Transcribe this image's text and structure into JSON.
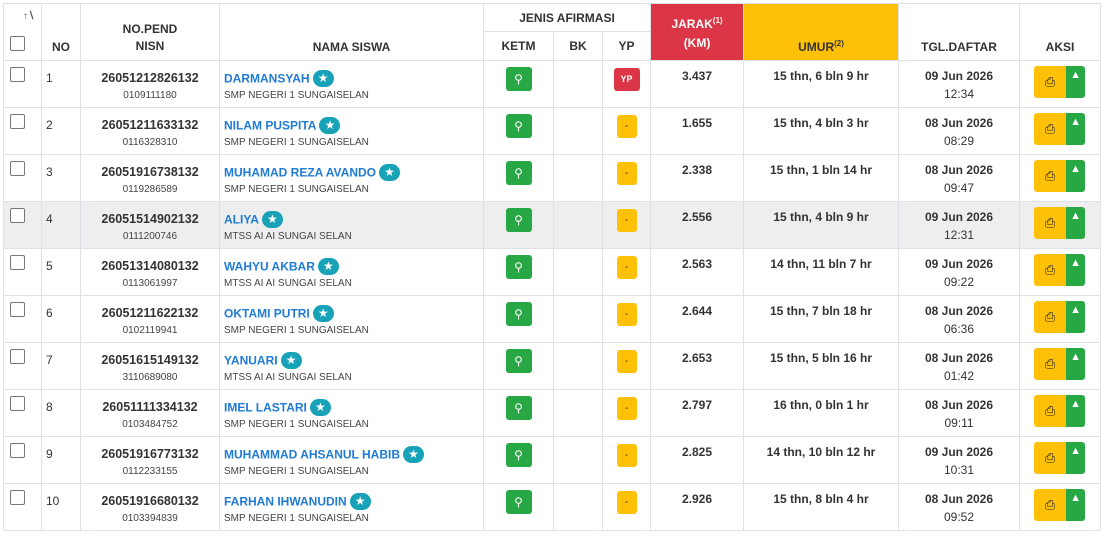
{
  "headers": {
    "no": "NO",
    "nopend": "NO.PEND",
    "nisn": "NISN",
    "nama": "NAMA SISWA",
    "jenis_afirmasi": "JENIS AFIRMASI",
    "ketm": "KETM",
    "bk": "BK",
    "yp": "YP",
    "jarak": "JARAK",
    "jarak_sup": "(1)",
    "jarak_unit": "(KM)",
    "umur": "UMUR",
    "umur_sup": "(2)",
    "tgl": "TGL.DAFTAR",
    "aksi": "AKSI"
  },
  "icons": {
    "sort": "sort-icon",
    "search": "search-icon",
    "star": "star-icon",
    "print": "print-icon",
    "thumbs_up": "thumbs-up-icon"
  },
  "colors": {
    "jarak_header": "#dc3545",
    "umur_header": "#ffc107",
    "search_button": "#28a745",
    "badge_yp": "#dc3545",
    "badge_dash": "#ffc107",
    "name_link": "#1f7bd6",
    "star_badge": "#17a2b8"
  },
  "rows": [
    {
      "no": "1",
      "nopend": "26051212826132",
      "nisn": "0109111180",
      "nama": "DARMANSYAH",
      "sekolah": "SMP NEGERI 1 SUNGAISELAN",
      "yp": "YP",
      "jarak": "3.437",
      "umur": "15 thn, 6 bln 9 hr",
      "tgl": "09 Jun 2026",
      "jam": "12:34"
    },
    {
      "no": "2",
      "nopend": "26051211633132",
      "nisn": "0116328310",
      "nama": "NILAM PUSPITA",
      "sekolah": "SMP NEGERI 1 SUNGAISELAN",
      "yp": "-",
      "jarak": "1.655",
      "umur": "15 thn, 4 bln 3 hr",
      "tgl": "08 Jun 2026",
      "jam": "08:29"
    },
    {
      "no": "3",
      "nopend": "26051916738132",
      "nisn": "0119286589",
      "nama": "MUHAMAD REZA AVANDO",
      "sekolah": "SMP NEGERI 1 SUNGAISELAN",
      "yp": "-",
      "jarak": "2.338",
      "umur": "15 thn, 1 bln 14 hr",
      "tgl": "08 Jun 2026",
      "jam": "09:47"
    },
    {
      "no": "4",
      "nopend": "26051514902132",
      "nisn": "0111200746",
      "nama": "ALIYA",
      "sekolah": "MTSS AI AI SUNGAI SELAN",
      "yp": "-",
      "jarak": "2.556",
      "umur": "15 thn, 4 bln 9 hr",
      "tgl": "09 Jun 2026",
      "jam": "12:31"
    },
    {
      "no": "5",
      "nopend": "26051314080132",
      "nisn": "0113061997",
      "nama": "WAHYU AKBAR",
      "sekolah": "MTSS AI AI SUNGAI SELAN",
      "yp": "-",
      "jarak": "2.563",
      "umur": "14 thn, 11 bln 7 hr",
      "tgl": "09 Jun 2026",
      "jam": "09:22"
    },
    {
      "no": "6",
      "nopend": "26051211622132",
      "nisn": "0102119941",
      "nama": "OKTAMI PUTRI",
      "sekolah": "SMP NEGERI 1 SUNGAISELAN",
      "yp": "-",
      "jarak": "2.644",
      "umur": "15 thn, 7 bln 18 hr",
      "tgl": "08 Jun 2026",
      "jam": "06:36"
    },
    {
      "no": "7",
      "nopend": "26051615149132",
      "nisn": "3110689080",
      "nama": "YANUARI",
      "sekolah": "MTSS AI AI SUNGAI SELAN",
      "yp": "-",
      "jarak": "2.653",
      "umur": "15 thn, 5 bln 16 hr",
      "tgl": "08 Jun 2026",
      "jam": "01:42"
    },
    {
      "no": "8",
      "nopend": "26051111334132",
      "nisn": "0103484752",
      "nama": "IMEL LASTARI",
      "sekolah": "SMP NEGERI 1 SUNGAISELAN",
      "yp": "-",
      "jarak": "2.797",
      "umur": "16 thn, 0 bln 1 hr",
      "tgl": "08 Jun 2026",
      "jam": "09:11"
    },
    {
      "no": "9",
      "nopend": "26051916773132",
      "nisn": "0112233155",
      "nama": "MUHAMMAD AHSANUL HABIB",
      "sekolah": "SMP NEGERI 1 SUNGAISELAN",
      "yp": "-",
      "jarak": "2.825",
      "umur": "14 thn, 10 bln 12 hr",
      "tgl": "09 Jun 2026",
      "jam": "10:31"
    },
    {
      "no": "10",
      "nopend": "26051916680132",
      "nisn": "0103394839",
      "nama": "FARHAN IHWANUDIN",
      "sekolah": "SMP NEGERI 1 SUNGAISELAN",
      "yp": "-",
      "jarak": "2.926",
      "umur": "15 thn, 8 bln 4 hr",
      "tgl": "08 Jun 2026",
      "jam": "09:52"
    }
  ]
}
